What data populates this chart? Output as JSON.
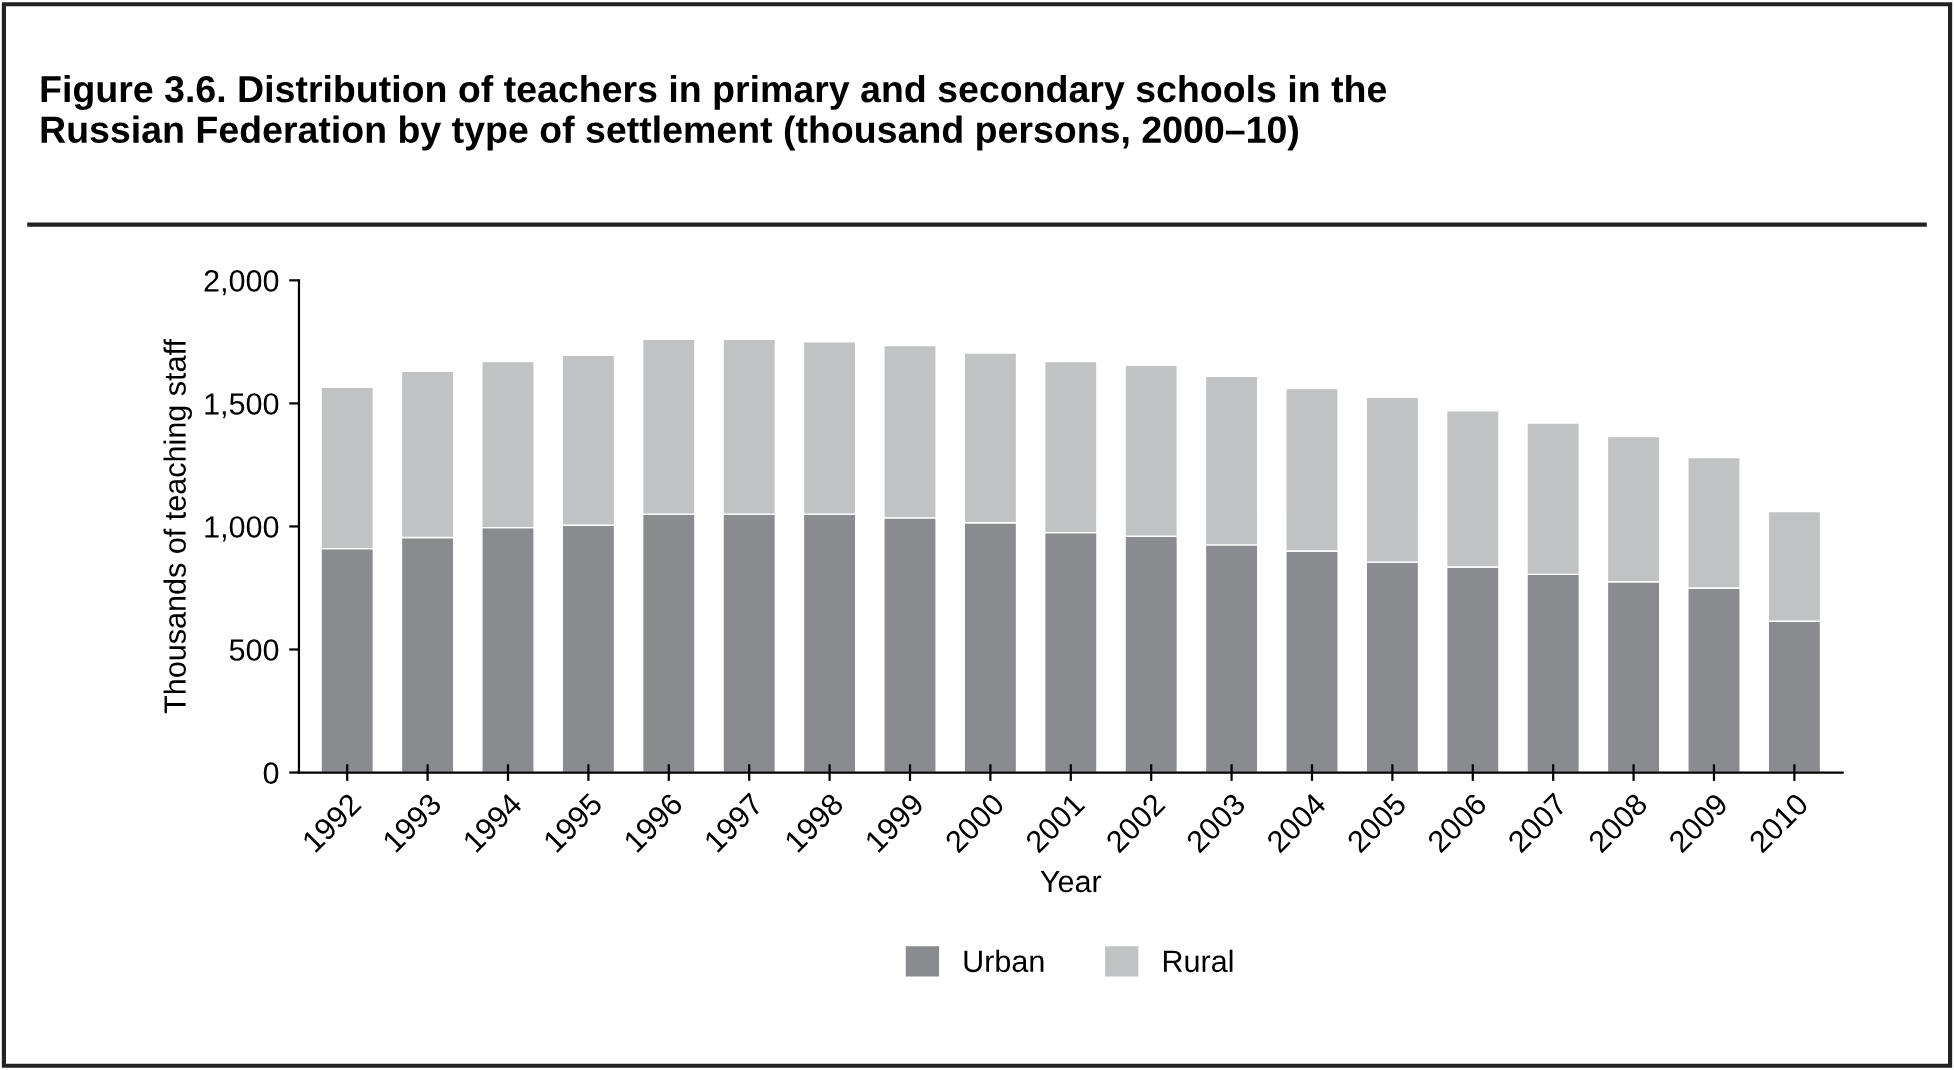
{
  "chart_data": {
    "type": "bar",
    "stacked": true,
    "title": "Figure 3.6. Distribution of teachers in primary and secondary schools in the\nRussian Federation by type of settlement (thousand persons, 2000–10)",
    "xlabel": "Year",
    "ylabel": "Thousands of teaching staff",
    "categories": [
      "1992",
      "1993",
      "1994",
      "1995",
      "1996",
      "1997",
      "1998",
      "1999",
      "2000",
      "2001",
      "2002",
      "2003",
      "2004",
      "2005",
      "2006",
      "2007",
      "2008",
      "2009",
      "2010"
    ],
    "series": [
      {
        "name": "Urban",
        "color": "#8a8b8f",
        "values": [
          910,
          955,
          995,
          1005,
          1050,
          1050,
          1050,
          1035,
          1015,
          975,
          960,
          925,
          900,
          855,
          835,
          805,
          775,
          750,
          615
        ]
      },
      {
        "name": "Rural",
        "color": "#c1c2c4",
        "values": [
          655,
          675,
          675,
          690,
          710,
          710,
          700,
          700,
          690,
          695,
          695,
          685,
          660,
          670,
          635,
          615,
          590,
          530,
          445
        ]
      }
    ],
    "ylim": [
      0,
      2000
    ],
    "yticks": [
      {
        "value": 0,
        "label": "0"
      },
      {
        "value": 500,
        "label": "500"
      },
      {
        "value": 1000,
        "label": "1,000"
      },
      {
        "value": 1500,
        "label": "1,500"
      },
      {
        "value": 2000,
        "label": "2,000"
      }
    ],
    "grid": false,
    "legend": "bottom"
  }
}
